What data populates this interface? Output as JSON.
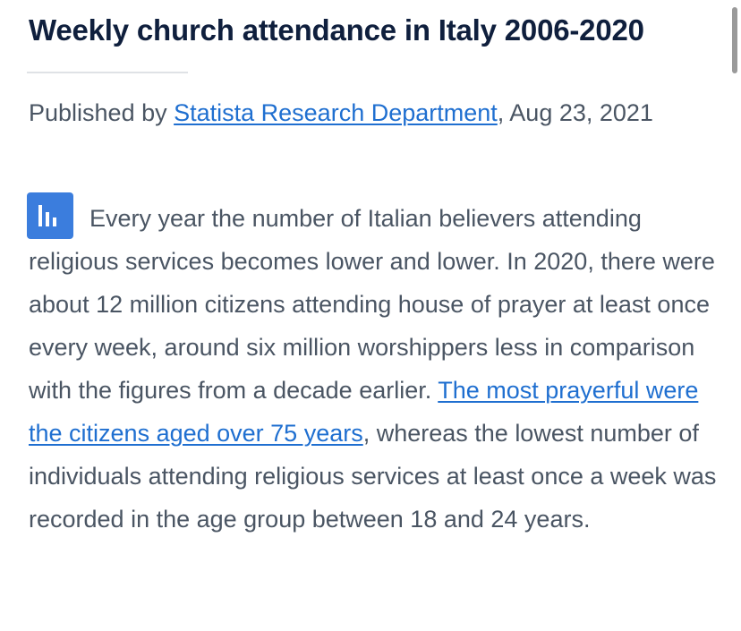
{
  "article": {
    "title": "Weekly church attendance in Italy 2006-2020",
    "published_prefix": "Published by ",
    "author": "Statista Research Department",
    "published_suffix": ", Aug 23, 2021",
    "body_intro": "Every year the number of Italian believers attending religious services becomes lower and lower. In 2020, there were about 12 million citizens attending house of prayer at least once every week, around six million worshippers less in comparison with the figures from a decade earlier. ",
    "body_link": "The most prayerful were the citizens aged over 75 years",
    "body_outro": ", whereas the lowest number of individuals attending religious services at least once a week was recorded in the age group between 18 and 24 years."
  },
  "icons": {
    "statistic": "bar-chart-icon"
  },
  "colors": {
    "title": "#0f1f3d",
    "body": "#4a5563",
    "link": "#1f6fd0",
    "icon_bg": "#3b7ddd"
  }
}
